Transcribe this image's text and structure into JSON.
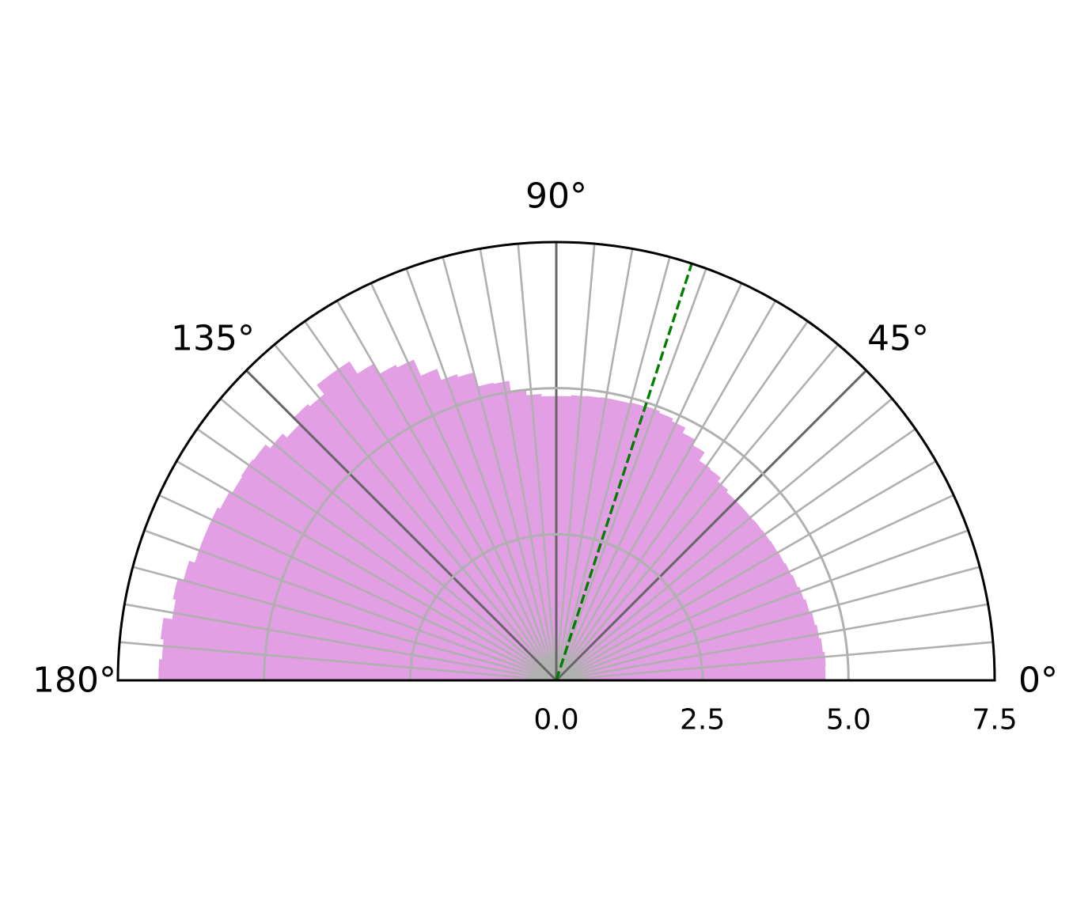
{
  "chart_data": {
    "type": "bar",
    "projection": "polar-half",
    "theta_range_deg": [
      0,
      180
    ],
    "r_range": [
      0,
      7.5
    ],
    "angle_ticks": [
      {
        "deg": 0,
        "label": "0°"
      },
      {
        "deg": 45,
        "label": "45°"
      },
      {
        "deg": 90,
        "label": "90°"
      },
      {
        "deg": 135,
        "label": "135°"
      },
      {
        "deg": 180,
        "label": "180°"
      }
    ],
    "radial_ticks": [
      {
        "value": 0.0,
        "label": "0.0"
      },
      {
        "value": 2.5,
        "label": "2.5"
      },
      {
        "value": 5.0,
        "label": "5.0"
      },
      {
        "value": 7.5,
        "label": "7.5"
      }
    ],
    "bin_width_deg": 3,
    "bins_start_deg": [
      0,
      3,
      6,
      9,
      12,
      15,
      18,
      21,
      24,
      27,
      30,
      33,
      36,
      39,
      42,
      45,
      48,
      51,
      54,
      57,
      60,
      63,
      66,
      69,
      72,
      75,
      78,
      81,
      84,
      87,
      90,
      93,
      96,
      99,
      102,
      105,
      108,
      111,
      114,
      117,
      120,
      123,
      126,
      129,
      132,
      135,
      138,
      141,
      144,
      147,
      150,
      153,
      156,
      159,
      162,
      165,
      168,
      171,
      174,
      177
    ],
    "values": [
      4.6,
      4.61,
      4.58,
      4.55,
      4.52,
      4.48,
      4.45,
      4.42,
      4.4,
      4.38,
      4.37,
      4.36,
      4.35,
      4.34,
      4.34,
      4.34,
      4.38,
      4.46,
      4.48,
      4.65,
      4.75,
      4.85,
      4.9,
      4.93,
      4.92,
      4.9,
      4.9,
      4.89,
      4.88,
      4.86,
      4.86,
      4.9,
      5.0,
      5.18,
      5.2,
      5.45,
      5.5,
      5.7,
      6.0,
      6.05,
      6.25,
      6.5,
      6.5,
      6.3,
      6.35,
      6.2,
      6.3,
      6.4,
      6.42,
      6.4,
      6.45,
      6.5,
      6.5,
      6.5,
      6.6,
      6.7,
      6.65,
      6.8,
      6.75,
      6.8
    ],
    "bar_color": "#e29fe4",
    "reference_line": {
      "angle_deg": 72,
      "color": "#007f00",
      "style": "dashed"
    },
    "grid": true,
    "minor_angle_grid_step_deg": 5
  }
}
